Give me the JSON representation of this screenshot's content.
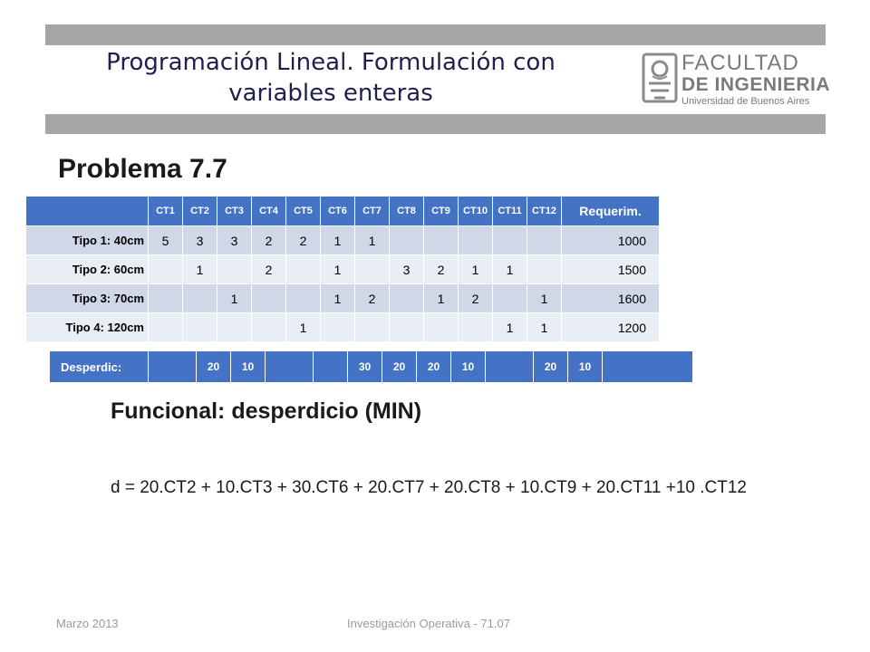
{
  "header": {
    "title_line1": "Programación Lineal. Formulación con",
    "title_line2": "variables enteras"
  },
  "logo": {
    "line1": "FACULTAD",
    "line2": "DE INGENIERIA",
    "line3": "Universidad de Buenos Aires"
  },
  "problem_title": "Problema 7.7",
  "table": {
    "columns": [
      "",
      "CT1",
      "CT2",
      "CT3",
      "CT4",
      "CT5",
      "CT6",
      "CT7",
      "CT8",
      "CT9",
      "CT10",
      "CT11",
      "CT12",
      "Requerim."
    ],
    "rows": [
      [
        "Tipo 1: 40cm",
        "5",
        "3",
        "3",
        "2",
        "2",
        "1",
        "1",
        "",
        "",
        "",
        "",
        "",
        "1000"
      ],
      [
        "Tipo 2: 60cm",
        "",
        "1",
        "",
        "2",
        "",
        "1",
        "",
        "3",
        "2",
        "1",
        "1",
        "",
        "1500"
      ],
      [
        "Tipo 3: 70cm",
        "",
        "",
        "1",
        "",
        "",
        "1",
        "2",
        "",
        "1",
        "2",
        "",
        "1",
        "1600"
      ],
      [
        "Tipo 4: 120cm",
        "",
        "",
        "",
        "",
        "1",
        "",
        "",
        "",
        "",
        "",
        "1",
        "1",
        "1200"
      ]
    ]
  },
  "waste_row": {
    "label": "Desperdic:",
    "values": [
      "",
      "20",
      "10",
      "",
      "",
      "30",
      "20",
      "20",
      "10",
      "",
      "20",
      "10",
      ""
    ]
  },
  "functional_label": "Funcional: desperdicio (MIN)",
  "equation": "d = 20.CT2 + 10.CT3 + 30.CT6 + 20.CT7 + 20.CT8 + 10.CT9 + 20.CT11 +10 .CT12",
  "footer": {
    "date": "Marzo 2013",
    "course": "Investigación Operativa - 71.07"
  },
  "colors": {
    "header_band": "#a6a6a6",
    "table_header": "#4472c4",
    "row_dark": "#d0d8e8",
    "row_light": "#e9edf4",
    "title_text": "#1f1f4f"
  }
}
